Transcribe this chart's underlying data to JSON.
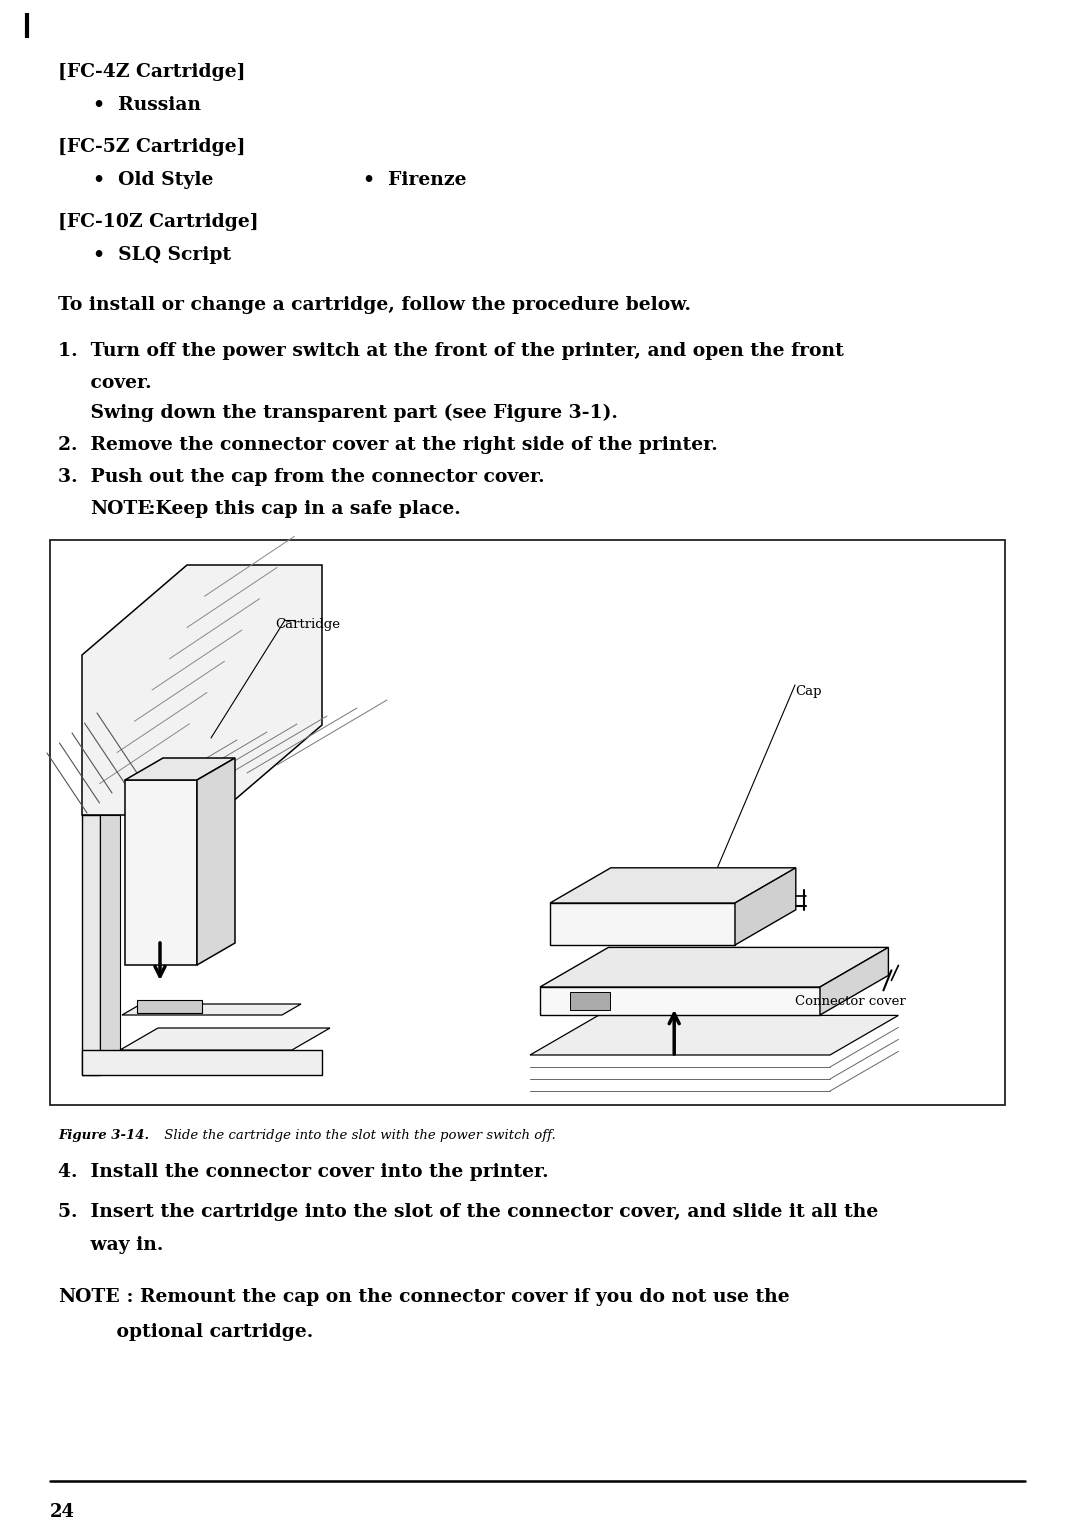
{
  "bg_color": "#ffffff",
  "text_color": "#000000",
  "page_width": 10.8,
  "page_height": 15.23,
  "fc4z_header": "[FC-4Z Cartridge]",
  "fc4z_bullet": "•  Russian",
  "fc5z_header": "[FC-5Z Cartridge]",
  "fc5z_bullet1": "•  Old Style",
  "fc5z_bullet2": "•  Firenze",
  "fc10z_header": "[FC-10Z Cartridge]",
  "fc10z_bullet": "•  SLQ Script",
  "intro": "To install or change a cartridge, follow the procedure below.",
  "step1a": "1.  Turn off the power switch at the front of the printer, and open the front",
  "step1b": "     cover.",
  "step1c": "     Swing down the transparent part (see Figure 3-1).",
  "step2": "2.  Remove the connector cover at the right side of the printer.",
  "step3a": "3.  Push out the cap from the connector cover.",
  "step3b_note": "NOTE",
  "step3b_rest": " :Keep this cap in a safe place.",
  "step4": "4.  Install the connector cover into the printer.",
  "step5a": "5.  Insert the cartridge into the slot of the connector cover, and slide it all the",
  "step5b": "     way in.",
  "note_bold": "NOTE",
  "note_rest": " : Remount the cap on the connector cover if you do not use the",
  "note_line2": "         optional cartridge.",
  "fig_caption_bold": "Figure 3-14.",
  "fig_caption_rest": " Slide the cartridge into the slot with the power switch off.",
  "page_num": "24",
  "cartridge_label": "Cartridge",
  "cap_label": "Cap",
  "connector_label": "Connector cover"
}
